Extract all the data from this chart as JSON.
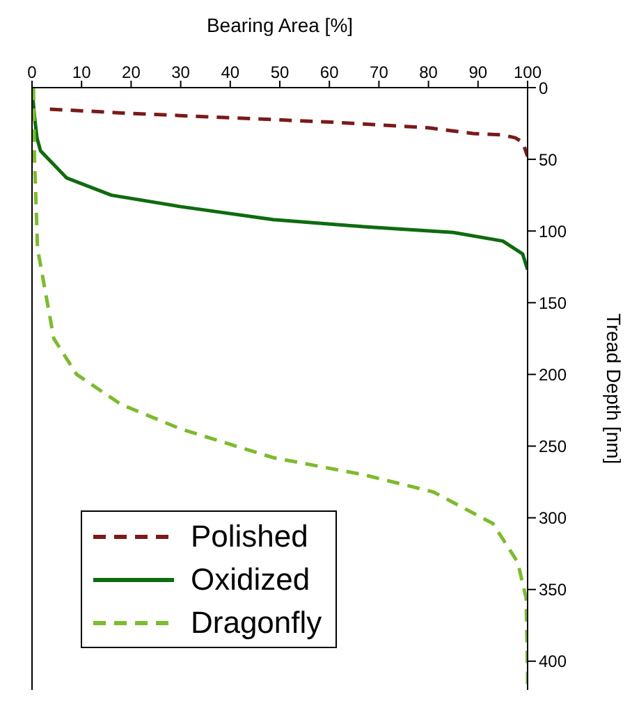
{
  "chart_data": {
    "type": "line",
    "xlabel": "Bearing Area [%]",
    "ylabel": "Tread Depth [nm]",
    "xlim": [
      0,
      100
    ],
    "xticks": [
      0,
      10,
      20,
      30,
      40,
      50,
      60,
      70,
      80,
      90,
      100
    ],
    "ylim": [
      420,
      0
    ],
    "yticks": [
      0,
      50,
      100,
      150,
      200,
      250,
      300,
      350,
      400
    ],
    "legend": "bottom left",
    "marker": "none",
    "series": [
      {
        "name": "Polished",
        "color": "#7a1a1a",
        "line_style": "dashed",
        "x": [
          3.6,
          20,
          40,
          60,
          80,
          89,
          95,
          97.5,
          99,
          100
        ],
        "values": [
          15,
          18,
          21,
          24,
          28,
          32,
          33,
          35,
          38,
          48
        ]
      },
      {
        "name": "Oxidized",
        "color": "#0f6b0f",
        "line_style": "solid",
        "x": [
          0,
          0.5,
          1,
          1.7,
          7,
          16,
          30,
          48.6,
          67,
          85,
          95,
          99,
          100
        ],
        "values": [
          0,
          20,
          35,
          44,
          63,
          75,
          83,
          92,
          97,
          101,
          107,
          116,
          127
        ]
      },
      {
        "name": "Dragonfly",
        "color": "#7dbb2e",
        "line_style": "dashed",
        "x": [
          0.3,
          0.5,
          1,
          1.1,
          4.4,
          9,
          18,
          30,
          48.6,
          67,
          81,
          93,
          98,
          99.7,
          100,
          100
        ],
        "values": [
          0,
          50,
          100,
          112,
          175,
          200,
          221,
          238,
          258,
          270,
          282,
          304,
          331,
          356,
          409,
          420
        ]
      }
    ]
  }
}
